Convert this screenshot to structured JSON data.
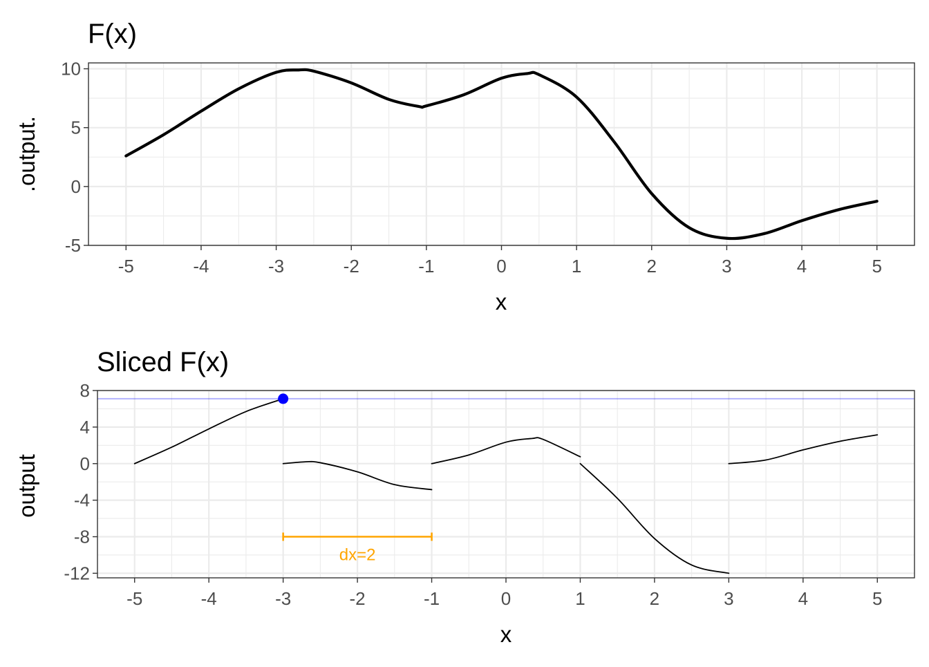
{
  "chart_data": [
    {
      "type": "line",
      "title": "F(x)",
      "xlabel": "x",
      "ylabel": ".output.",
      "xlim": [
        -5.5,
        5.5
      ],
      "ylim": [
        -5,
        10.5
      ],
      "xticks": [
        -5,
        -4,
        -3,
        -2,
        -1,
        0,
        1,
        2,
        3,
        4,
        5
      ],
      "xtick_labels": [
        "-5",
        "-4",
        "-3",
        "-2",
        "-1",
        "0",
        "1",
        "2",
        "3",
        "4",
        "5"
      ],
      "yticks": [
        -5,
        0,
        5,
        10
      ],
      "ytick_labels": [
        "-5",
        "0",
        "5",
        "10"
      ],
      "grid": true,
      "series": [
        {
          "color": "#000000",
          "x": [
            -5,
            -4.5,
            -4,
            -3.5,
            -3,
            -2.7,
            -2.5,
            -2,
            -1.5,
            -1.1,
            -1,
            -0.5,
            0,
            0.35,
            0.5,
            1,
            1.5,
            2,
            2.5,
            3,
            3.5,
            4,
            4.5,
            5
          ],
          "y": [
            2.6,
            4.4,
            6.4,
            8.3,
            9.7,
            9.9,
            9.8,
            8.8,
            7.4,
            6.8,
            6.85,
            7.8,
            9.2,
            9.6,
            9.5,
            7.6,
            3.8,
            -0.6,
            -3.5,
            -4.4,
            -4.0,
            -2.9,
            -1.95,
            -1.25
          ]
        }
      ]
    },
    {
      "type": "line",
      "title": "Sliced F(x)",
      "xlabel": "x",
      "ylabel": "output",
      "xlim": [
        -5.5,
        5.5
      ],
      "ylim": [
        -12.5,
        8
      ],
      "xticks": [
        -5,
        -4,
        -3,
        -2,
        -1,
        0,
        1,
        2,
        3,
        4,
        5
      ],
      "xtick_labels": [
        "-5",
        "-4",
        "-3",
        "-2",
        "-1",
        "0",
        "1",
        "2",
        "3",
        "4",
        "5"
      ],
      "yticks": [
        -12,
        -8,
        -4,
        0,
        4,
        8
      ],
      "ytick_labels": [
        "-12",
        "-8",
        "-4",
        "0",
        "4",
        "8"
      ],
      "grid": true,
      "series": [
        {
          "color": "#000000",
          "x": [
            -5,
            -4.5,
            -4,
            -3.5,
            -3
          ],
          "y": [
            0,
            1.8,
            3.8,
            5.7,
            7.1
          ]
        },
        {
          "color": "#000000",
          "x": [
            -3,
            -2.7,
            -2.5,
            -2,
            -1.5,
            -1
          ],
          "y": [
            0,
            0.2,
            0.1,
            -0.9,
            -2.3,
            -2.85
          ]
        },
        {
          "color": "#000000",
          "x": [
            -1,
            -0.5,
            0,
            0.35,
            0.5,
            1
          ],
          "y": [
            0,
            0.95,
            2.35,
            2.75,
            2.65,
            0.75
          ]
        },
        {
          "color": "#000000",
          "x": [
            1,
            1.5,
            2,
            2.5,
            3
          ],
          "y": [
            0,
            -3.8,
            -8.2,
            -11.1,
            -12.0
          ]
        },
        {
          "color": "#000000",
          "x": [
            3,
            3.5,
            4,
            4.5,
            5
          ],
          "y": [
            0,
            0.4,
            1.5,
            2.45,
            3.15
          ]
        }
      ],
      "hline": {
        "y": 7.1,
        "color": "#0000ff"
      },
      "point": {
        "x": -3,
        "y": 7.1,
        "color": "#0000ff"
      },
      "annotation": {
        "label": "dx=2",
        "x_start": -3,
        "x_end": -1,
        "y": -8,
        "label_y": -9.9,
        "color": "#ffa500"
      }
    }
  ]
}
